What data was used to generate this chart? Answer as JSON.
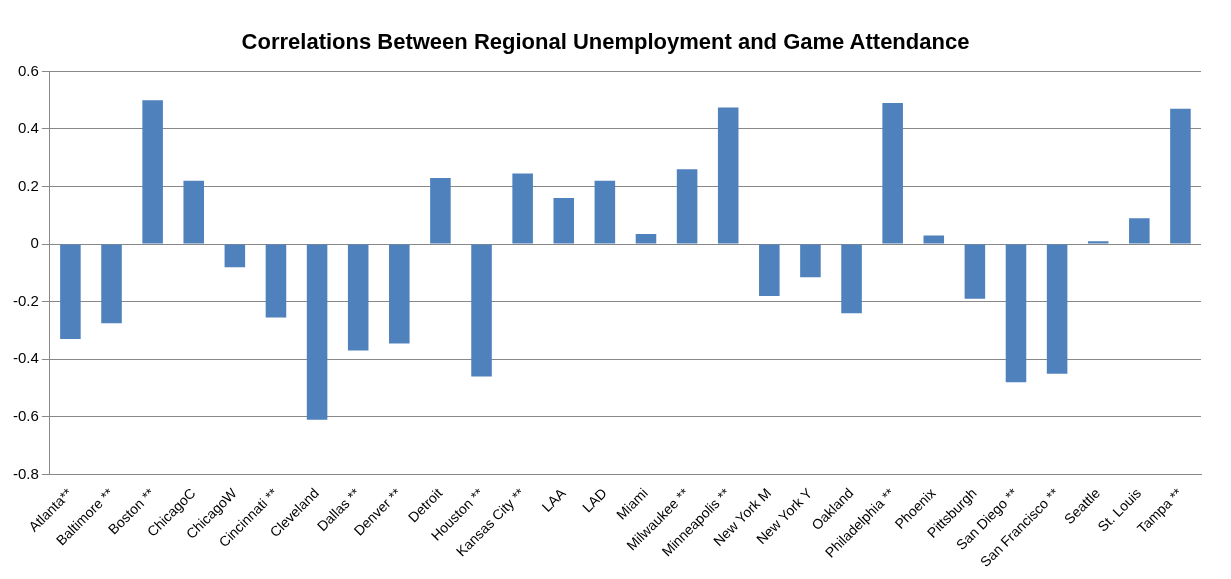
{
  "chart_data": {
    "type": "bar",
    "title": "Correlations Between Regional Unemployment and Game Attendance",
    "categories": [
      "Atlanta**",
      "Baltimore **",
      "Boston **",
      "ChicagoC",
      "ChicagoW",
      "Cincinnati **",
      "Cleveland",
      "Dallas **",
      "Denver **",
      "Detroit",
      "Houston **",
      "Kansas City **",
      "LAA",
      "LAD",
      "Miami",
      "Milwaukee **",
      "Minneapolis **",
      "New York M",
      "New York Y",
      "Oakland",
      "Philadelphia **",
      "Phoenix",
      "Pittsburgh",
      "San Diego **",
      "San Francisco **",
      "Seattle",
      "St. Louis",
      "Tampa **"
    ],
    "values": [
      -0.33,
      -0.275,
      0.5,
      0.22,
      -0.08,
      -0.255,
      -0.61,
      -0.37,
      -0.345,
      0.23,
      -0.46,
      0.245,
      0.16,
      0.22,
      0.035,
      0.26,
      0.475,
      -0.18,
      -0.115,
      -0.24,
      0.49,
      0.03,
      -0.19,
      -0.48,
      -0.45,
      0.01,
      0.09,
      0.47
    ],
    "color": "#4f81bd",
    "ylim": [
      -0.8,
      0.6
    ],
    "yticks": [
      -0.8,
      -0.6,
      -0.4,
      -0.2,
      0,
      0.2,
      0.4,
      0.6
    ],
    "grid": "y",
    "legend": false
  }
}
